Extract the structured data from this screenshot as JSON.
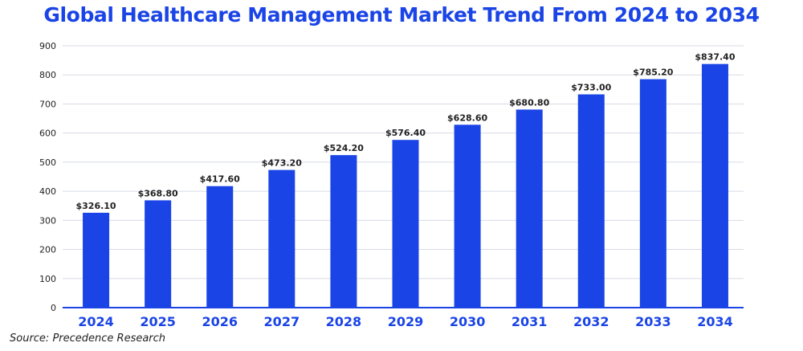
{
  "chart_data": {
    "type": "bar",
    "title": "Global Healthcare Management Market Trend From 2024 to 2034",
    "source": "Source: Precedence Research",
    "categories": [
      "2024",
      "2025",
      "2026",
      "2027",
      "2028",
      "2029",
      "2030",
      "2031",
      "2032",
      "2033",
      "2034"
    ],
    "values": [
      326.1,
      368.8,
      417.6,
      473.2,
      524.2,
      576.4,
      628.6,
      680.8,
      733.0,
      785.2,
      837.4
    ],
    "data_labels": [
      "$326.10",
      "$368.80",
      "$417.60",
      "$473.20",
      "$524.20",
      "$576.40",
      "$628.60",
      "$680.80",
      "$733.00",
      "$785.20",
      "$837.40"
    ],
    "y_ticks": [
      0,
      100,
      200,
      300,
      400,
      500,
      600,
      700,
      800,
      900
    ],
    "ylim": [
      0,
      900
    ],
    "xlabel": "",
    "ylabel": "",
    "grid": true,
    "legend": "none",
    "colors": {
      "bar": "#1a44e6",
      "axis": "#1a44e6",
      "grid": "#d8dbe6",
      "title": "#1a44e6"
    }
  }
}
